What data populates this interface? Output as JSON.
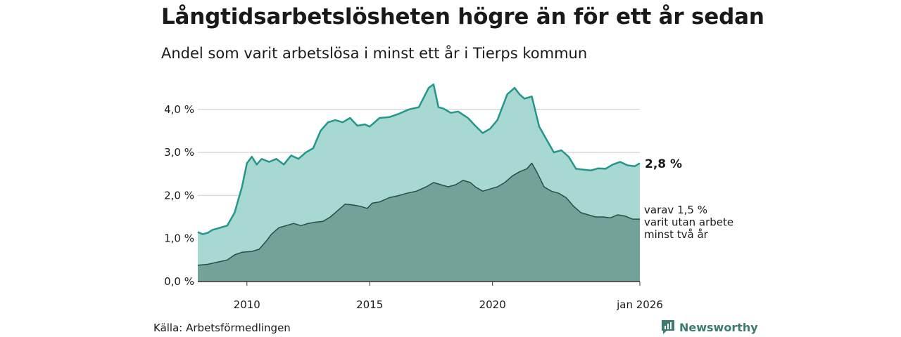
{
  "header": {
    "title": "Långtidsarbetslösheten högre än för ett år sedan",
    "subtitle": "Andel som varit arbetslösa i minst ett år i Tierps kommun"
  },
  "footer": {
    "source": "Källa: Arbetsförmedlingen",
    "brand": "Newsworthy"
  },
  "colors": {
    "series1_line": "#23978a",
    "series1_fill": "#a7d8d2",
    "series2_line": "#2b4d47",
    "series2_fill": "#72a298",
    "grid": "#d9d9d9",
    "brand": "#3d7a72"
  },
  "chart_data": {
    "type": "area",
    "x_range": [
      2008.0,
      2026.0
    ],
    "ylim": [
      0,
      4.6
    ],
    "ytick_values": [
      0,
      1,
      2,
      3,
      4
    ],
    "ytick_labels": [
      "0,0 %",
      "1,0 %",
      "2,0 %",
      "3,0 %",
      "4,0 %"
    ],
    "xtick_values": [
      2010,
      2015,
      2020,
      2026
    ],
    "xtick_labels": [
      "2010",
      "2015",
      "2020",
      "jan 2026"
    ],
    "series": [
      {
        "name": "Arbetslösa minst ett år",
        "end_label": "2,8 %",
        "x": [
          2008.0,
          2008.2,
          2008.4,
          2008.6,
          2008.9,
          2009.2,
          2009.5,
          2009.8,
          2010.0,
          2010.2,
          2010.4,
          2010.6,
          2010.9,
          2011.2,
          2011.5,
          2011.8,
          2012.1,
          2012.4,
          2012.7,
          2013.0,
          2013.3,
          2013.6,
          2013.9,
          2014.2,
          2014.5,
          2014.8,
          2015.0,
          2015.4,
          2015.8,
          2016.2,
          2016.6,
          2017.0,
          2017.4,
          2017.6,
          2017.8,
          2018.0,
          2018.3,
          2018.6,
          2019.0,
          2019.3,
          2019.6,
          2019.9,
          2020.2,
          2020.6,
          2020.9,
          2021.1,
          2021.3,
          2021.6,
          2021.9,
          2022.2,
          2022.5,
          2022.8,
          2023.1,
          2023.4,
          2023.7,
          2024.0,
          2024.3,
          2024.6,
          2024.9,
          2025.2,
          2025.5,
          2025.8,
          2026.0
        ],
        "values": [
          1.15,
          1.1,
          1.13,
          1.2,
          1.25,
          1.3,
          1.6,
          2.2,
          2.75,
          2.9,
          2.72,
          2.85,
          2.78,
          2.85,
          2.72,
          2.93,
          2.85,
          3.0,
          3.1,
          3.5,
          3.7,
          3.75,
          3.7,
          3.8,
          3.62,
          3.65,
          3.6,
          3.8,
          3.82,
          3.9,
          4.0,
          4.05,
          4.5,
          4.58,
          4.05,
          4.02,
          3.92,
          3.95,
          3.8,
          3.62,
          3.45,
          3.55,
          3.75,
          4.35,
          4.5,
          4.35,
          4.25,
          4.3,
          3.6,
          3.3,
          3.0,
          3.05,
          2.9,
          2.62,
          2.6,
          2.58,
          2.63,
          2.62,
          2.72,
          2.78,
          2.7,
          2.68,
          2.75
        ]
      },
      {
        "name": "varav utan arbete minst två år",
        "end_label_lines": [
          "varav 1,5 %",
          "varit utan arbete",
          "minst två år"
        ],
        "x": [
          2008.0,
          2008.4,
          2008.8,
          2009.2,
          2009.5,
          2009.8,
          2010.2,
          2010.5,
          2010.8,
          2011.0,
          2011.3,
          2011.6,
          2011.9,
          2012.2,
          2012.5,
          2012.8,
          2013.1,
          2013.4,
          2013.7,
          2014.0,
          2014.3,
          2014.6,
          2014.9,
          2015.1,
          2015.4,
          2015.8,
          2016.2,
          2016.5,
          2016.9,
          2017.3,
          2017.6,
          2017.9,
          2018.2,
          2018.5,
          2018.8,
          2019.1,
          2019.3,
          2019.6,
          2019.9,
          2020.2,
          2020.5,
          2020.8,
          2021.1,
          2021.4,
          2021.6,
          2021.8,
          2022.1,
          2022.4,
          2022.7,
          2023.0,
          2023.3,
          2023.6,
          2023.9,
          2024.2,
          2024.5,
          2024.8,
          2025.1,
          2025.4,
          2025.7,
          2026.0
        ],
        "values": [
          0.38,
          0.4,
          0.45,
          0.5,
          0.62,
          0.68,
          0.7,
          0.75,
          0.95,
          1.1,
          1.25,
          1.3,
          1.35,
          1.3,
          1.35,
          1.38,
          1.4,
          1.5,
          1.65,
          1.8,
          1.78,
          1.75,
          1.7,
          1.82,
          1.85,
          1.95,
          2.0,
          2.05,
          2.1,
          2.2,
          2.3,
          2.25,
          2.2,
          2.25,
          2.35,
          2.3,
          2.2,
          2.1,
          2.15,
          2.2,
          2.3,
          2.45,
          2.55,
          2.62,
          2.75,
          2.55,
          2.2,
          2.1,
          2.05,
          1.95,
          1.75,
          1.6,
          1.55,
          1.5,
          1.5,
          1.48,
          1.55,
          1.52,
          1.45,
          1.45
        ]
      }
    ]
  }
}
